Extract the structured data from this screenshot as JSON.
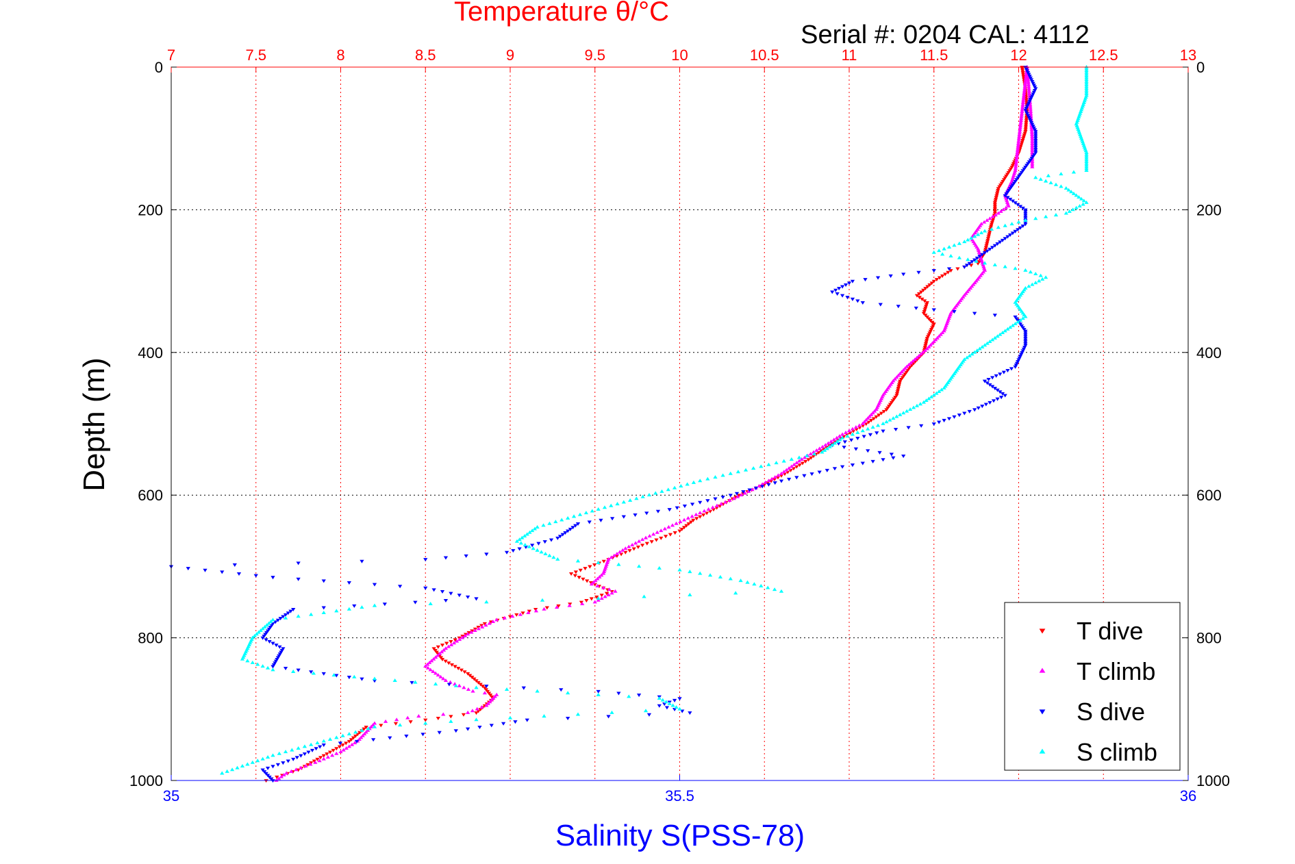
{
  "chart_data": {
    "type": "scatter",
    "title": "Temperature θ/°C",
    "subtitle": "Serial #: 0204  CAL: 4112",
    "ylabel": "Depth (m)",
    "xlabel": "Salinity S(PSS-78)",
    "ylim": [
      0,
      1000
    ],
    "y_reversed": true,
    "temperature_axis": {
      "position": "top",
      "range": [
        7,
        13
      ],
      "ticks": [
        "7",
        "7.5",
        "8",
        "8.5",
        "9",
        "9.5",
        "10",
        "10.5",
        "11",
        "11.5",
        "12",
        "12.5",
        "13"
      ],
      "color": "#ff0000"
    },
    "salinity_axis": {
      "position": "bottom",
      "range": [
        35,
        36
      ],
      "ticks": [
        "35",
        "35.5",
        "36"
      ],
      "color": "#0000ff"
    },
    "depth_ticks": [
      "0",
      "200",
      "400",
      "600",
      "800",
      "1000"
    ],
    "grid": true,
    "legend_position": "bottom-right",
    "series": [
      {
        "name": "T dive",
        "axis": "temperature",
        "marker": "triangle-down",
        "color": "#ff0000",
        "points": [
          [
            12.02,
            0
          ],
          [
            12.04,
            30
          ],
          [
            12.05,
            60
          ],
          [
            12.04,
            90
          ],
          [
            12.0,
            120
          ],
          [
            11.96,
            140
          ],
          [
            11.92,
            155
          ],
          [
            11.88,
            170
          ],
          [
            11.86,
            190
          ],
          [
            11.86,
            205
          ],
          [
            11.84,
            220
          ],
          [
            11.82,
            240
          ],
          [
            11.8,
            260
          ],
          [
            11.76,
            275
          ],
          [
            11.6,
            285
          ],
          [
            11.5,
            300
          ],
          [
            11.4,
            320
          ],
          [
            11.46,
            330
          ],
          [
            11.44,
            345
          ],
          [
            11.5,
            360
          ],
          [
            11.46,
            380
          ],
          [
            11.44,
            400
          ],
          [
            11.36,
            420
          ],
          [
            11.3,
            440
          ],
          [
            11.28,
            460
          ],
          [
            11.22,
            480
          ],
          [
            11.1,
            500
          ],
          [
            10.95,
            520
          ],
          [
            10.85,
            535
          ],
          [
            10.76,
            550
          ],
          [
            10.62,
            570
          ],
          [
            10.5,
            585
          ],
          [
            10.35,
            600
          ],
          [
            10.2,
            620
          ],
          [
            10.08,
            635
          ],
          [
            10.0,
            650
          ],
          [
            9.78,
            670
          ],
          [
            9.58,
            690
          ],
          [
            9.36,
            710
          ],
          [
            9.5,
            725
          ],
          [
            9.6,
            735
          ],
          [
            9.42,
            750
          ],
          [
            9.15,
            760
          ],
          [
            8.85,
            780
          ],
          [
            8.7,
            800
          ],
          [
            8.55,
            815
          ],
          [
            8.6,
            830
          ],
          [
            8.75,
            850
          ],
          [
            8.85,
            870
          ],
          [
            8.9,
            885
          ],
          [
            8.8,
            905
          ],
          [
            8.5,
            915
          ],
          [
            8.15,
            925
          ],
          [
            8.05,
            945
          ],
          [
            7.9,
            965
          ],
          [
            7.75,
            985
          ],
          [
            7.56,
            1000
          ]
        ]
      },
      {
        "name": "T climb",
        "axis": "temperature",
        "marker": "triangle-up",
        "color": "#ff00ff",
        "points": [
          [
            12.08,
            140
          ],
          [
            12.08,
            100
          ],
          [
            12.07,
            60
          ],
          [
            12.06,
            30
          ],
          [
            12.05,
            0
          ],
          [
            11.98,
            145
          ],
          [
            11.96,
            160
          ],
          [
            11.92,
            180
          ],
          [
            11.94,
            195
          ],
          [
            11.88,
            205
          ],
          [
            11.78,
            220
          ],
          [
            11.72,
            240
          ],
          [
            11.76,
            255
          ],
          [
            11.78,
            270
          ],
          [
            11.8,
            285
          ],
          [
            11.75,
            300
          ],
          [
            11.68,
            320
          ],
          [
            11.6,
            345
          ],
          [
            11.56,
            370
          ],
          [
            11.46,
            395
          ],
          [
            11.34,
            420
          ],
          [
            11.26,
            440
          ],
          [
            11.2,
            460
          ],
          [
            11.16,
            480
          ],
          [
            11.08,
            500
          ],
          [
            10.96,
            515
          ],
          [
            10.86,
            530
          ],
          [
            10.72,
            550
          ],
          [
            10.6,
            570
          ],
          [
            10.45,
            590
          ],
          [
            10.32,
            605
          ],
          [
            10.12,
            625
          ],
          [
            9.98,
            640
          ],
          [
            9.8,
            660
          ],
          [
            9.68,
            675
          ],
          [
            9.58,
            690
          ],
          [
            9.55,
            710
          ],
          [
            9.48,
            725
          ],
          [
            9.62,
            735
          ],
          [
            9.5,
            750
          ],
          [
            9.2,
            760
          ],
          [
            8.92,
            775
          ],
          [
            8.75,
            795
          ],
          [
            8.62,
            815
          ],
          [
            8.5,
            840
          ],
          [
            8.62,
            860
          ],
          [
            8.78,
            875
          ],
          [
            8.92,
            880
          ],
          [
            8.86,
            895
          ],
          [
            8.75,
            905
          ],
          [
            8.46,
            910
          ],
          [
            8.2,
            920
          ],
          [
            8.1,
            945
          ],
          [
            8.0,
            960
          ],
          [
            7.85,
            975
          ],
          [
            7.68,
            990
          ],
          [
            7.62,
            1000
          ]
        ]
      },
      {
        "name": "S dive",
        "axis": "salinity",
        "marker": "triangle-down",
        "color": "#0000ff",
        "points": [
          [
            35.84,
            0
          ],
          [
            35.85,
            30
          ],
          [
            35.84,
            60
          ],
          [
            35.85,
            90
          ],
          [
            35.85,
            120
          ],
          [
            35.84,
            140
          ],
          [
            35.83,
            160
          ],
          [
            35.82,
            180
          ],
          [
            35.84,
            200
          ],
          [
            35.84,
            220
          ],
          [
            35.82,
            240
          ],
          [
            35.8,
            260
          ],
          [
            35.78,
            280
          ],
          [
            35.72,
            290
          ],
          [
            35.67,
            300
          ],
          [
            35.65,
            315
          ],
          [
            35.68,
            330
          ],
          [
            35.75,
            340
          ],
          [
            35.83,
            350
          ],
          [
            35.84,
            370
          ],
          [
            35.84,
            390
          ],
          [
            35.83,
            420
          ],
          [
            35.8,
            440
          ],
          [
            35.82,
            460
          ],
          [
            35.79,
            480
          ],
          [
            35.75,
            500
          ],
          [
            35.7,
            510
          ],
          [
            35.65,
            530
          ],
          [
            35.72,
            545
          ],
          [
            35.66,
            560
          ],
          [
            35.6,
            580
          ],
          [
            35.55,
            600
          ],
          [
            35.49,
            620
          ],
          [
            35.4,
            640
          ],
          [
            35.38,
            660
          ],
          [
            35.33,
            680
          ],
          [
            35.25,
            690
          ],
          [
            35.0,
            700
          ],
          [
            35.1,
            715
          ],
          [
            35.25,
            730
          ],
          [
            35.3,
            745
          ],
          [
            35.12,
            760
          ],
          [
            35.1,
            780
          ],
          [
            35.09,
            800
          ],
          [
            35.11,
            815
          ],
          [
            35.1,
            840
          ],
          [
            35.2,
            860
          ],
          [
            35.42,
            875
          ],
          [
            35.5,
            885
          ],
          [
            35.48,
            895
          ],
          [
            35.51,
            905
          ],
          [
            35.35,
            915
          ],
          [
            35.28,
            930
          ],
          [
            35.15,
            950
          ],
          [
            35.12,
            970
          ],
          [
            35.09,
            985
          ],
          [
            35.1,
            1000
          ]
        ]
      },
      {
        "name": "S climb",
        "axis": "salinity",
        "marker": "triangle-up",
        "color": "#00ffff",
        "points": [
          [
            35.9,
            0
          ],
          [
            35.9,
            40
          ],
          [
            35.89,
            80
          ],
          [
            35.9,
            120
          ],
          [
            35.9,
            145
          ],
          [
            35.85,
            155
          ],
          [
            35.88,
            170
          ],
          [
            35.9,
            190
          ],
          [
            35.88,
            205
          ],
          [
            35.84,
            215
          ],
          [
            35.8,
            230
          ],
          [
            35.78,
            245
          ],
          [
            35.75,
            260
          ],
          [
            35.8,
            275
          ],
          [
            35.84,
            285
          ],
          [
            35.86,
            295
          ],
          [
            35.84,
            310
          ],
          [
            35.83,
            330
          ],
          [
            35.84,
            350
          ],
          [
            35.82,
            370
          ],
          [
            35.8,
            390
          ],
          [
            35.78,
            410
          ],
          [
            35.77,
            430
          ],
          [
            35.76,
            450
          ],
          [
            35.74,
            470
          ],
          [
            35.72,
            485
          ],
          [
            35.7,
            500
          ],
          [
            35.66,
            520
          ],
          [
            35.64,
            540
          ],
          [
            35.58,
            560
          ],
          [
            35.52,
            580
          ],
          [
            35.47,
            600
          ],
          [
            35.42,
            620
          ],
          [
            35.36,
            645
          ],
          [
            35.34,
            665
          ],
          [
            35.38,
            690
          ],
          [
            35.5,
            705
          ],
          [
            35.56,
            720
          ],
          [
            35.6,
            735
          ],
          [
            35.42,
            745
          ],
          [
            35.2,
            755
          ],
          [
            35.1,
            775
          ],
          [
            35.08,
            800
          ],
          [
            35.07,
            830
          ],
          [
            35.1,
            845
          ],
          [
            35.3,
            870
          ],
          [
            35.48,
            885
          ],
          [
            35.5,
            900
          ],
          [
            35.3,
            915
          ],
          [
            35.2,
            925
          ],
          [
            35.15,
            945
          ],
          [
            35.1,
            965
          ],
          [
            35.05,
            990
          ]
        ]
      }
    ]
  }
}
